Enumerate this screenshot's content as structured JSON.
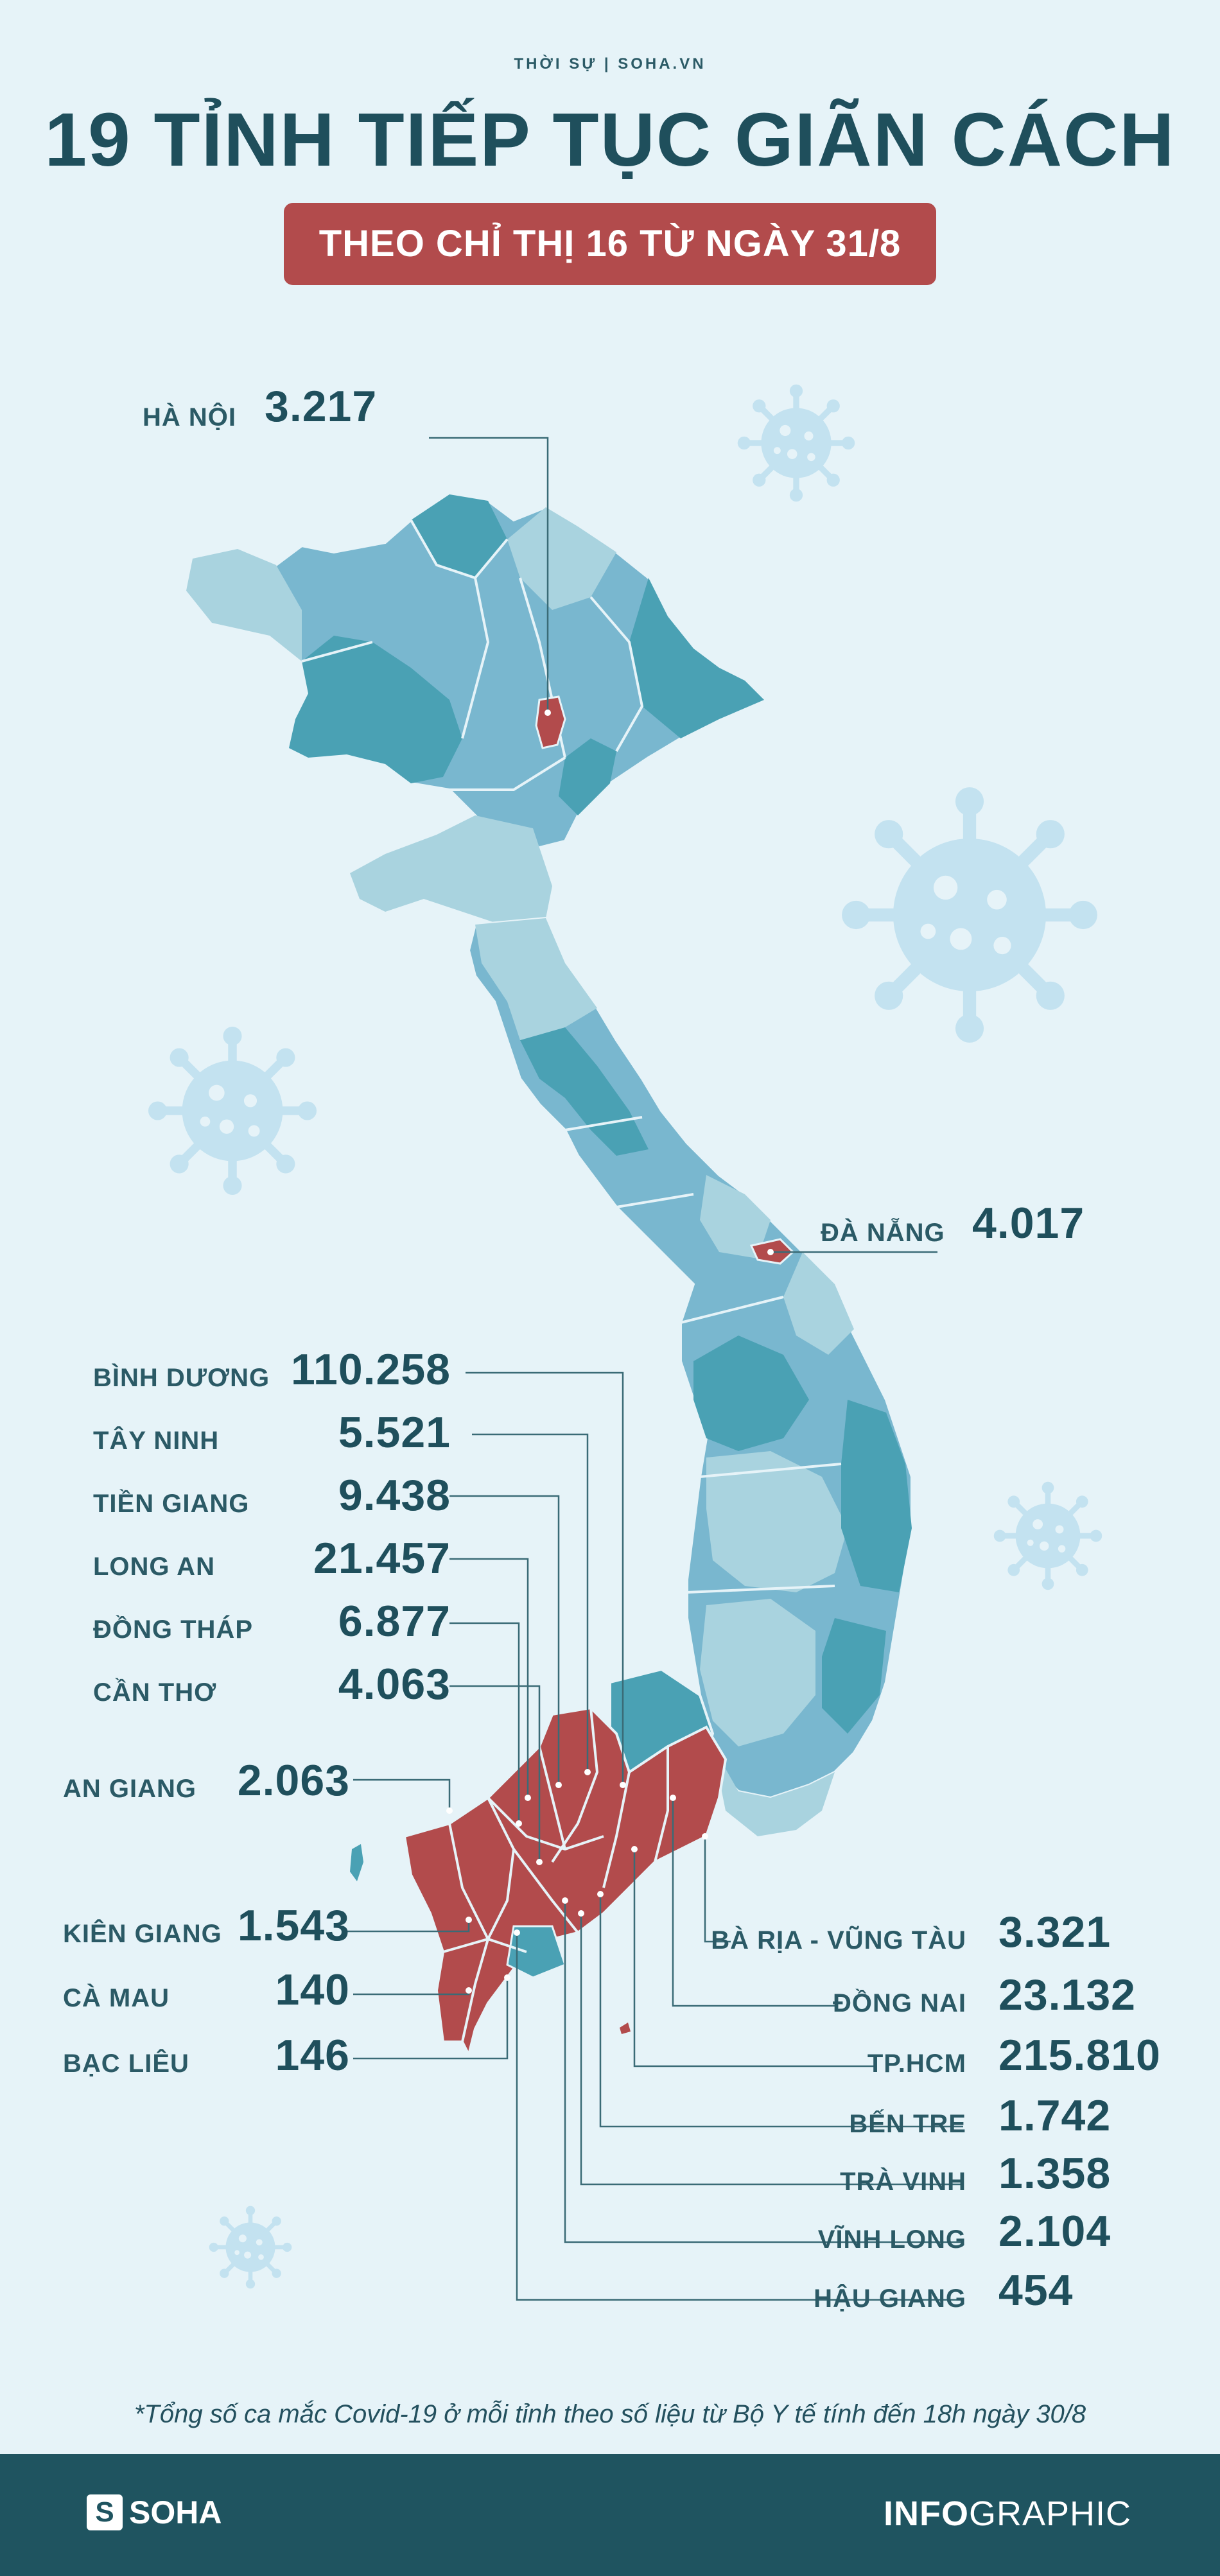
{
  "header": {
    "kicker": "THỜI SỰ | SOHA.VN",
    "title": "19 TỈNH TIẾP TỤC GIÃN CÁCH",
    "subtitle": "THEO CHỈ THỊ 16 TỪ NGÀY 31/8"
  },
  "provinces": {
    "ha_noi": {
      "name": "HÀ NỘI",
      "value": "3.217"
    },
    "da_nang": {
      "name": "ĐÀ NẴNG",
      "value": "4.017"
    },
    "binh_duong": {
      "name": "BÌNH DƯƠNG",
      "value": "110.258"
    },
    "tay_ninh": {
      "name": "TÂY NINH",
      "value": "5.521"
    },
    "tien_giang": {
      "name": "TIỀN GIANG",
      "value": "9.438"
    },
    "long_an": {
      "name": "LONG AN",
      "value": "21.457"
    },
    "dong_thap": {
      "name": "ĐỒNG THÁP",
      "value": "6.877"
    },
    "can_tho": {
      "name": "CẦN THƠ",
      "value": "4.063"
    },
    "an_giang": {
      "name": "AN GIANG",
      "value": "2.063"
    },
    "kien_giang": {
      "name": "KIÊN GIANG",
      "value": "1.543"
    },
    "ca_mau": {
      "name": "CÀ MAU",
      "value": "140"
    },
    "bac_lieu": {
      "name": "BẠC LIÊU",
      "value": "146"
    },
    "ba_ria_vung_tau": {
      "name": "BÀ RỊA - VŨNG TÀU",
      "value": "3.321"
    },
    "dong_nai": {
      "name": "ĐỒNG NAI",
      "value": "23.132"
    },
    "tp_hcm": {
      "name": "TP.HCM",
      "value": "215.810"
    },
    "ben_tre": {
      "name": "BẾN TRE",
      "value": "1.742"
    },
    "tra_vinh": {
      "name": "TRÀ VINH",
      "value": "1.358"
    },
    "vinh_long": {
      "name": "VĨNH LONG",
      "value": "2.104"
    },
    "hau_giang": {
      "name": "HẬU GIANG",
      "value": "454"
    }
  },
  "footnote": "*Tổng số ca mắc Covid-19 ở mỗi tỉnh theo số liệu từ Bộ Y tế tính đến 18h ngày 30/8",
  "footer": {
    "logo_letter": "S",
    "logo_text": "SOHA",
    "brand_bold": "INFO",
    "brand_light": "GRAPHIC"
  },
  "colors": {
    "background": "#e6f3f8",
    "title": "#1f4f5c",
    "accent_red": "#b24b4c",
    "map_dark": "#4aa1b4",
    "map_mid": "#79b7cf",
    "map_light": "#a9d3df",
    "virus": "#c3e2f0",
    "footer": "#1f5460"
  }
}
